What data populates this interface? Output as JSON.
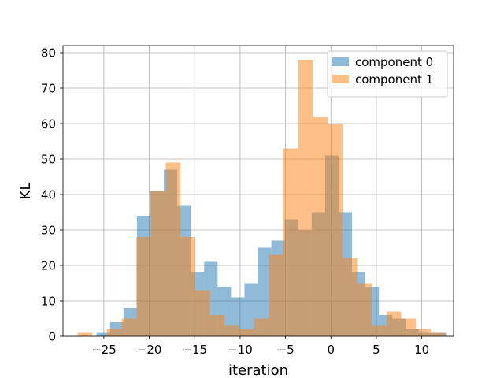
{
  "chart_data": {
    "type": "bar",
    "subtype": "histogram",
    "xlabel": "iteration",
    "ylabel": "KL",
    "xlim": [
      -29.5,
      13.5
    ],
    "ylim": [
      0,
      82
    ],
    "xticks": [
      -25,
      -20,
      -15,
      -10,
      -5,
      0,
      5,
      10
    ],
    "xtick_labels": [
      "−25",
      "−20",
      "−15",
      "−10",
      "−5",
      "0",
      "5",
      "10"
    ],
    "yticks": [
      0,
      10,
      20,
      30,
      40,
      50,
      60,
      70,
      80
    ],
    "ytick_labels": [
      "0",
      "10",
      "20",
      "30",
      "40",
      "50",
      "60",
      "70",
      "80"
    ],
    "grid": true,
    "legend_position": "top-right",
    "series": [
      {
        "name": "component 0",
        "color": "#1f77b4",
        "opacity": 0.5,
        "bin_start": -25.8,
        "bin_width": 1.48,
        "values": [
          1,
          4,
          8,
          34,
          41,
          47,
          37,
          18,
          21,
          14,
          11,
          15,
          25,
          27,
          33,
          30,
          35,
          51,
          35,
          18,
          14,
          6,
          5,
          2,
          1,
          1
        ]
      },
      {
        "name": "component 1",
        "color": "#ff7f0e",
        "opacity": 0.5,
        "bin_start": -27.9,
        "bin_width": 1.62,
        "values": [
          1,
          0,
          2,
          5,
          28,
          41,
          49,
          28,
          13,
          6,
          3,
          2,
          5,
          23,
          53,
          78,
          62,
          60,
          22,
          15,
          3,
          7,
          5,
          2,
          1
        ]
      }
    ]
  }
}
